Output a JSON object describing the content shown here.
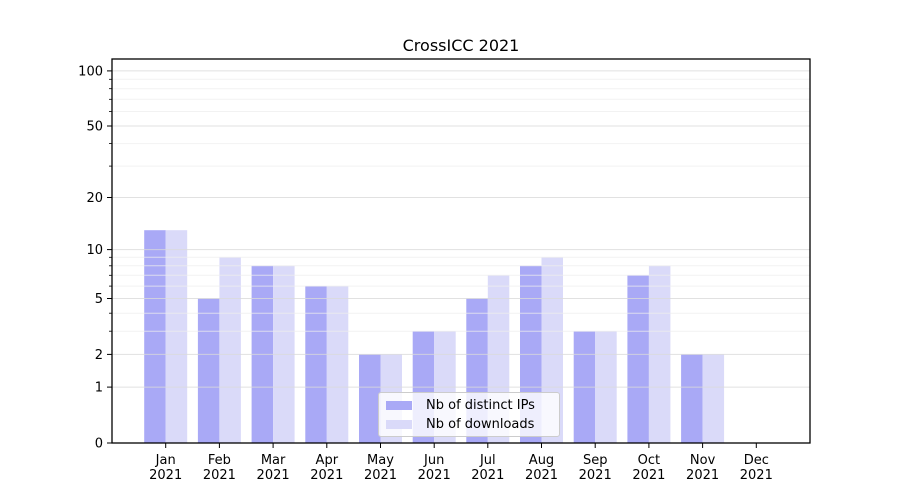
{
  "chart_data": {
    "type": "bar",
    "title": "CrossICC 2021",
    "categories": [
      "Jan",
      "Feb",
      "Mar",
      "Apr",
      "May",
      "Jun",
      "Jul",
      "Aug",
      "Sep",
      "Oct",
      "Nov",
      "Dec"
    ],
    "category_year": "2021",
    "series": [
      {
        "name": "Nb of distinct IPs",
        "color": "#a9a9f6",
        "values": [
          13,
          5,
          8,
          6,
          2,
          3,
          5,
          8,
          3,
          7,
          2,
          0
        ]
      },
      {
        "name": "Nb of downloads",
        "color": "#dadaf9",
        "values": [
          13,
          9,
          8,
          6,
          2,
          3,
          7,
          9,
          3,
          8,
          2,
          0
        ]
      }
    ],
    "xlabel": "",
    "ylabel": "",
    "yscale": "log1p",
    "ylim": [
      0,
      116
    ],
    "yticks": [
      0,
      1,
      2,
      5,
      10,
      20,
      50,
      100
    ],
    "yticks_minor": [
      3,
      4,
      6,
      7,
      8,
      9,
      30,
      40,
      60,
      70,
      80,
      90
    ],
    "grid": true,
    "legend_position": "lower center"
  },
  "style": {
    "grid_major_color": "#d9d9d9",
    "grid_minor_color": "#ededed",
    "spine_color": "#000000",
    "tick_label_color": "#000000",
    "title_color": "#000000"
  }
}
